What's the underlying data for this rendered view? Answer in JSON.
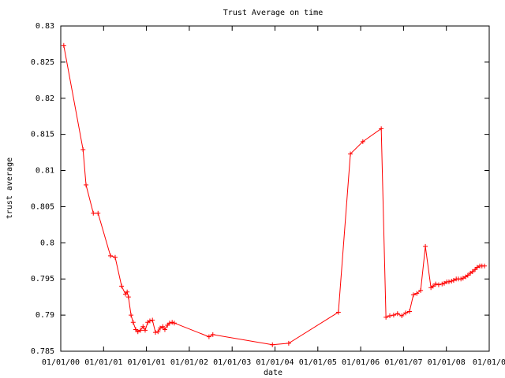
{
  "chart_data": {
    "type": "line",
    "title": "Trust Average on time",
    "x_label": "date",
    "y_label": "trust average",
    "xlim": [
      0,
      10
    ],
    "xticks": [
      {
        "value": 0,
        "label": "01/01/00"
      },
      {
        "value": 1,
        "label": "01/01/01"
      },
      {
        "value": 2,
        "label": "01/01/01"
      },
      {
        "value": 3,
        "label": "01/01/02"
      },
      {
        "value": 4,
        "label": "01/01/03"
      },
      {
        "value": 5,
        "label": "01/01/04"
      },
      {
        "value": 6,
        "label": "01/01/05"
      },
      {
        "value": 7,
        "label": "01/01/06"
      },
      {
        "value": 8,
        "label": "01/01/07"
      },
      {
        "value": 9,
        "label": "01/01/08"
      },
      {
        "value": 10,
        "label": "01/01/0"
      }
    ],
    "ylim": [
      0.785,
      0.83
    ],
    "yticks": [
      0.785,
      0.79,
      0.795,
      0.8,
      0.805,
      0.81,
      0.815,
      0.82,
      0.825,
      0.83
    ],
    "x": [
      0.07,
      0.52,
      0.59,
      0.76,
      0.87,
      1.16,
      1.27,
      1.42,
      1.51,
      1.55,
      1.58,
      1.64,
      1.69,
      1.75,
      1.8,
      1.86,
      1.92,
      1.97,
      2.03,
      2.08,
      2.14,
      2.21,
      2.27,
      2.32,
      2.38,
      2.43,
      2.49,
      2.54,
      2.6,
      2.65,
      3.46,
      3.55,
      4.94,
      5.32,
      6.48,
      6.76,
      7.05,
      7.48,
      7.59,
      7.68,
      7.77,
      7.86,
      7.96,
      8.05,
      8.14,
      8.23,
      8.31,
      8.4,
      8.51,
      8.64,
      8.69,
      8.75,
      8.82,
      8.9,
      8.95,
      9.01,
      9.06,
      9.12,
      9.17,
      9.23,
      9.28,
      9.34,
      9.39,
      9.45,
      9.5,
      9.56,
      9.61,
      9.67,
      9.72,
      9.78,
      9.83,
      9.89
    ],
    "series": [
      {
        "color": "#ff0000",
        "values": [
          0.8273,
          0.8129,
          0.808,
          0.8041,
          0.8041,
          0.7982,
          0.798,
          0.794,
          0.7929,
          0.7932,
          0.7925,
          0.79,
          0.789,
          0.788,
          0.7877,
          0.7879,
          0.7884,
          0.7879,
          0.789,
          0.7892,
          0.7893,
          0.7876,
          0.7877,
          0.7882,
          0.7884,
          0.788,
          0.7886,
          0.7889,
          0.789,
          0.7889,
          0.787,
          0.7873,
          0.7859,
          0.7861,
          0.7904,
          0.8123,
          0.814,
          0.8158,
          0.7897,
          0.7899,
          0.79,
          0.7902,
          0.7899,
          0.7903,
          0.7905,
          0.7928,
          0.793,
          0.7934,
          0.7995,
          0.7938,
          0.794,
          0.7943,
          0.7942,
          0.7943,
          0.7944,
          0.7946,
          0.7946,
          0.7947,
          0.7948,
          0.795,
          0.795,
          0.795,
          0.7951,
          0.7953,
          0.7955,
          0.7958,
          0.796,
          0.7963,
          0.7966,
          0.7968,
          0.7968,
          0.7968
        ]
      }
    ]
  }
}
